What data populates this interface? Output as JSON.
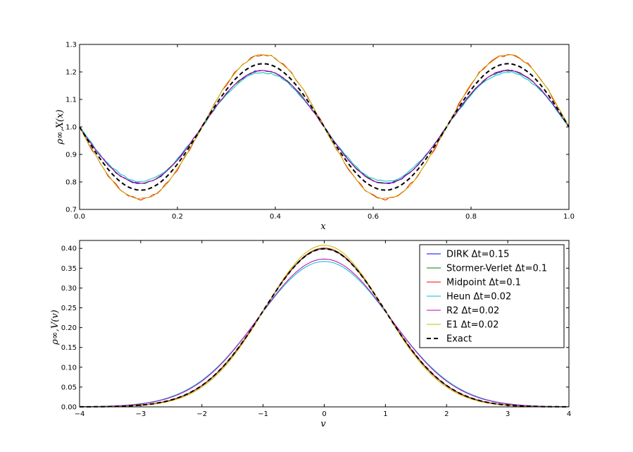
{
  "chart_data": [
    {
      "type": "line",
      "xlabel": "x",
      "ylabel": "ρ∞,X(x)",
      "xlim": [
        0.0,
        1.0
      ],
      "ylim": [
        0.7,
        1.3
      ],
      "xticks": [
        "0.0",
        "0.2",
        "0.4",
        "0.6",
        "0.8",
        "1.0"
      ],
      "yticks": [
        "0.7",
        "0.8",
        "0.9",
        "1.0",
        "1.1",
        "1.2",
        "1.3"
      ],
      "grid": false,
      "series": [
        {
          "name": "DIRK Δt=0.15",
          "color": "#0000ff",
          "amplitude": 0.205,
          "noise": 0.003,
          "x": [
            0.0,
            0.125,
            0.375,
            0.625,
            0.875,
            1.0
          ],
          "y": [
            0.985,
            0.795,
            1.205,
            0.795,
            1.205,
            0.985
          ]
        },
        {
          "name": "Stormer-Verlet Δt=0.1",
          "color": "#008000",
          "amplitude": 0.205,
          "noise": 0.003,
          "x": [
            0.0,
            0.125,
            0.375,
            0.625,
            0.875,
            1.0
          ],
          "y": [
            0.985,
            0.795,
            1.205,
            0.795,
            1.205,
            0.985
          ]
        },
        {
          "name": "Midpoint Δt=0.1",
          "color": "#ff0000",
          "amplitude": 0.262,
          "noise": 0.005,
          "x": [
            0.0,
            0.125,
            0.375,
            0.625,
            0.875,
            1.0
          ],
          "y": [
            0.985,
            0.76,
            1.265,
            0.76,
            1.27,
            0.985
          ]
        },
        {
          "name": "Heun Δt=0.02",
          "color": "#00bfbf",
          "amplitude": 0.198,
          "noise": 0.004,
          "x": [
            0.0,
            0.125,
            0.375,
            0.625,
            0.875,
            1.0
          ],
          "y": [
            0.985,
            0.81,
            1.21,
            0.81,
            1.205,
            0.985
          ]
        },
        {
          "name": "R2 Δt=0.02",
          "color": "#bf00bf",
          "amplitude": 0.205,
          "noise": 0.003,
          "x": [
            0.0,
            0.125,
            0.375,
            0.625,
            0.875,
            1.0
          ],
          "y": [
            0.985,
            0.8,
            1.21,
            0.8,
            1.205,
            0.985
          ]
        },
        {
          "name": "E1 Δt=0.02",
          "color": "#bfbf00",
          "amplitude": 0.262,
          "noise": 0.004,
          "x": [
            0.0,
            0.125,
            0.375,
            0.625,
            0.875,
            1.0
          ],
          "y": [
            0.985,
            0.755,
            1.265,
            0.755,
            1.275,
            0.985
          ]
        },
        {
          "name": "Exact",
          "color": "#000000",
          "dashed": true,
          "amplitude": 0.23,
          "noise": 0,
          "x": [
            0.0,
            0.125,
            0.375,
            0.625,
            0.875,
            1.0
          ],
          "y": [
            0.98,
            0.775,
            1.25,
            0.775,
            1.25,
            0.98
          ]
        }
      ]
    },
    {
      "type": "line",
      "xlabel": "v",
      "ylabel": "ρ∞,V(v)",
      "xlim": [
        -4,
        4
      ],
      "ylim": [
        0.0,
        0.42
      ],
      "xticks": [
        "−4",
        "−3",
        "−2",
        "−1",
        "0",
        "1",
        "2",
        "3",
        "4"
      ],
      "yticks": [
        "0.00",
        "0.05",
        "0.10",
        "0.15",
        "0.20",
        "0.25",
        "0.30",
        "0.35",
        "0.40"
      ],
      "grid": false,
      "legend_position": "top-right",
      "series": [
        {
          "name": "DIRK Δt=0.15",
          "color": "#0000ff",
          "peak": 0.399,
          "sigma": 1.0
        },
        {
          "name": "Stormer-Verlet Δt=0.1",
          "color": "#008000",
          "peak": 0.399,
          "sigma": 1.0
        },
        {
          "name": "Midpoint Δt=0.1",
          "color": "#ff0000",
          "peak": 0.401,
          "sigma": 0.995
        },
        {
          "name": "Heun Δt=0.02",
          "color": "#00bfbf",
          "peak": 0.367,
          "sigma": 1.085
        },
        {
          "name": "R2 Δt=0.02",
          "color": "#bf00bf",
          "peak": 0.373,
          "sigma": 1.07
        },
        {
          "name": "E1 Δt=0.02",
          "color": "#bfbf00",
          "peak": 0.408,
          "sigma": 0.975
        },
        {
          "name": "Exact",
          "color": "#000000",
          "dashed": true,
          "peak": 0.399,
          "sigma": 1.0
        }
      ]
    }
  ],
  "legend": {
    "entries": [
      "DIRK Δt=0.15",
      "Stormer-Verlet Δt=0.1",
      "Midpoint Δt=0.1",
      "Heun Δt=0.02",
      "R2 Δt=0.02",
      "E1 Δt=0.02",
      "Exact"
    ],
    "colors": [
      "#0000ff",
      "#008000",
      "#ff0000",
      "#00bfbf",
      "#bf00bf",
      "#bfbf00",
      "#000000"
    ]
  }
}
